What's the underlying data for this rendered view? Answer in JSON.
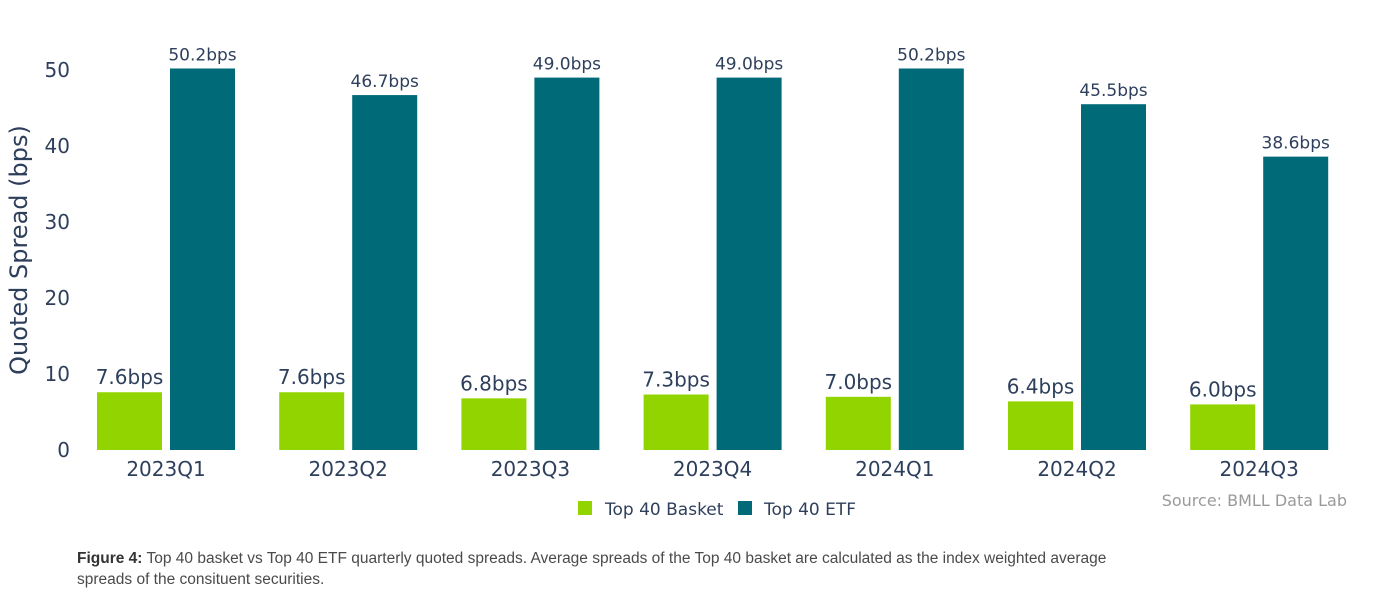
{
  "chart_data": {
    "type": "bar",
    "categories": [
      "2023Q1",
      "2023Q2",
      "2023Q3",
      "2023Q4",
      "2024Q1",
      "2024Q2",
      "2024Q3"
    ],
    "series": [
      {
        "name": "Top 40 Basket",
        "color": "#92d400",
        "values": [
          7.6,
          7.6,
          6.8,
          7.3,
          7.0,
          6.4,
          6.0
        ],
        "labels": [
          "7.6bps",
          "7.6bps",
          "6.8bps",
          "7.3bps",
          "7.0bps",
          "6.4bps",
          "6.0bps"
        ]
      },
      {
        "name": "Top 40 ETF",
        "color": "#006a78",
        "values": [
          50.2,
          46.7,
          49.0,
          49.0,
          50.2,
          45.5,
          38.6
        ],
        "labels": [
          "50.2bps",
          "46.7bps",
          "49.0bps",
          "49.0bps",
          "50.2bps",
          "45.5bps",
          "38.6bps"
        ]
      }
    ],
    "ylabel": "Quoted Spread (bps)",
    "yticks": [
      "0",
      "10",
      "20",
      "30",
      "40",
      "50"
    ],
    "ylim": [
      0,
      50
    ],
    "grid": false,
    "legend_position": "bottom-center"
  },
  "source": "Source: BMLL Data Lab",
  "caption": {
    "prefix": "Figure 4:",
    "text": " Top 40 basket vs Top 40 ETF quarterly quoted spreads. Average spreads of the Top 40 basket are calculated as the index weighted average spreads of the consituent securities."
  }
}
